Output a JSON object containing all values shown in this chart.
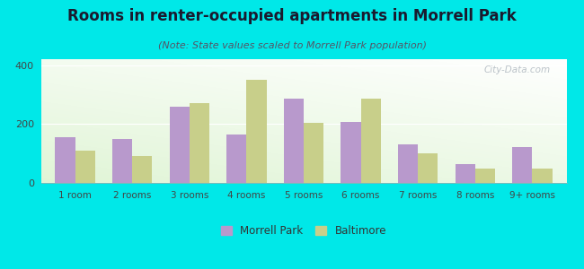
{
  "title": "Rooms in renter-occupied apartments in Morrell Park",
  "subtitle": "(Note: State values scaled to Morrell Park population)",
  "categories": [
    "1 room",
    "2 rooms",
    "3 rooms",
    "4 rooms",
    "5 rooms",
    "6 rooms",
    "7 rooms",
    "8 rooms",
    "9+ rooms"
  ],
  "morrell_park": [
    155,
    148,
    260,
    163,
    285,
    207,
    132,
    65,
    123
  ],
  "baltimore": [
    110,
    90,
    270,
    350,
    205,
    285,
    100,
    48,
    48
  ],
  "morrell_color": "#b899cc",
  "baltimore_color": "#c8cf8a",
  "background_color": "#00e8e8",
  "ylim": [
    0,
    420
  ],
  "yticks": [
    0,
    200,
    400
  ],
  "bar_width": 0.35,
  "legend_morrell": "Morrell Park",
  "legend_baltimore": "Baltimore",
  "title_fontsize": 12,
  "subtitle_fontsize": 8,
  "watermark": "City-Data.com"
}
